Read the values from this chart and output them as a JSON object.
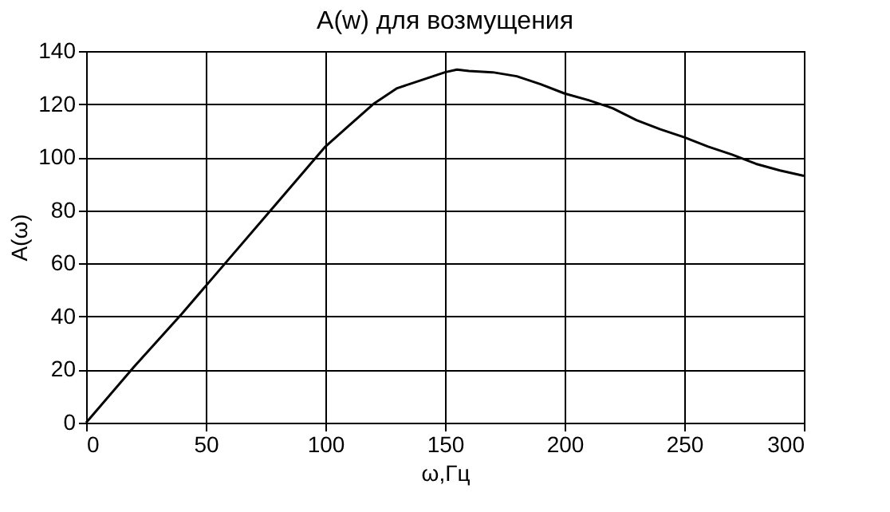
{
  "chart_data": {
    "type": "line",
    "title": "A(w) для возмущения",
    "xlabel": "ω,Гц",
    "ylabel": "A(ω)",
    "x": [
      0,
      20,
      40,
      60,
      80,
      100,
      110,
      120,
      130,
      140,
      150,
      155,
      160,
      170,
      180,
      190,
      200,
      210,
      220,
      230,
      240,
      250,
      260,
      270,
      280,
      290,
      300
    ],
    "series": [
      {
        "color": "#000000",
        "values": [
          0,
          21,
          41,
          62,
          83,
          104,
          112,
          120,
          126,
          129,
          132,
          133,
          132.5,
          132,
          130.5,
          127.5,
          124,
          121.5,
          118.5,
          114,
          110.5,
          107.5,
          104,
          101,
          97.5,
          95,
          93
        ]
      }
    ],
    "xlim": [
      0,
      300
    ],
    "xticks": [
      0,
      50,
      100,
      150,
      200,
      250,
      300
    ],
    "ylim": [
      0,
      140
    ],
    "yticks": [
      0,
      20,
      40,
      60,
      80,
      100,
      120,
      140
    ],
    "grid": true,
    "marker": "none",
    "line_style": "solid"
  }
}
